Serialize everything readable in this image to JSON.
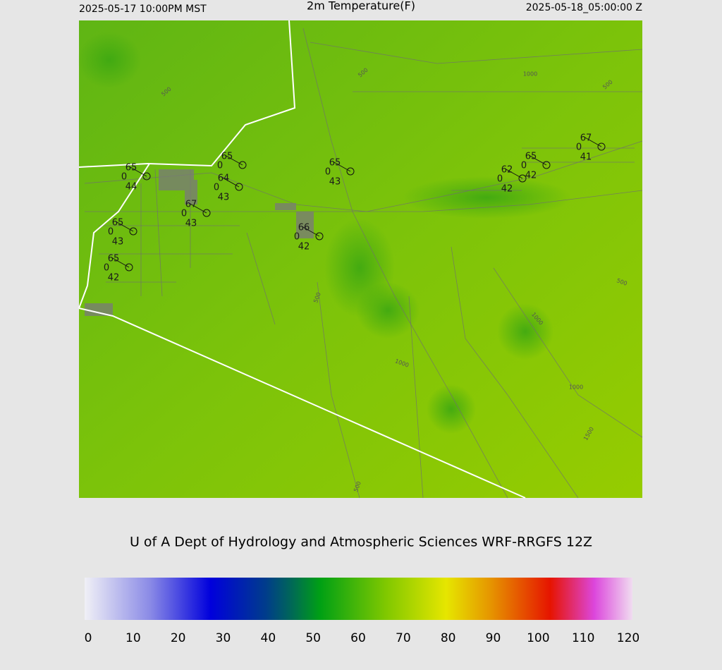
{
  "header": {
    "left": "2025-05-17 10:00PM MST",
    "title": "2m Temperature(F)",
    "right": "2025-05-18_05:00:00 Z"
  },
  "stations": [
    {
      "temperature": 65,
      "cloud": 0,
      "dewpoint": 44
    },
    {
      "temperature": 65,
      "cloud": 0
    },
    {
      "temperature": 64,
      "cloud": 0,
      "dewpoint": 43
    },
    {
      "temperature": 67,
      "cloud": 0,
      "dewpoint": 43
    },
    {
      "temperature": 65,
      "cloud": 0,
      "dewpoint": 43
    },
    {
      "temperature": 65,
      "cloud": 0,
      "dewpoint": 42
    },
    {
      "temperature": 66,
      "cloud": 0,
      "dewpoint": 42
    },
    {
      "temperature": 65,
      "cloud": 0,
      "dewpoint": 43
    },
    {
      "temperature": 62,
      "cloud": 0,
      "dewpoint": 42
    },
    {
      "temperature": 65,
      "cloud": 0,
      "dewpoint": 42
    },
    {
      "temperature": 67,
      "cloud": 0,
      "dewpoint": 41
    }
  ],
  "contour_labels": [
    500,
    500,
    1000,
    500,
    500,
    1000,
    500,
    1000,
    1000,
    1500,
    500
  ],
  "credit": "U of A Dept of Hydrology and Atmospheric Sciences WRF-RRGFS 12Z",
  "colorbar": {
    "ticks": [
      0,
      10,
      20,
      30,
      40,
      50,
      60,
      70,
      80,
      90,
      100,
      110,
      120
    ]
  }
}
